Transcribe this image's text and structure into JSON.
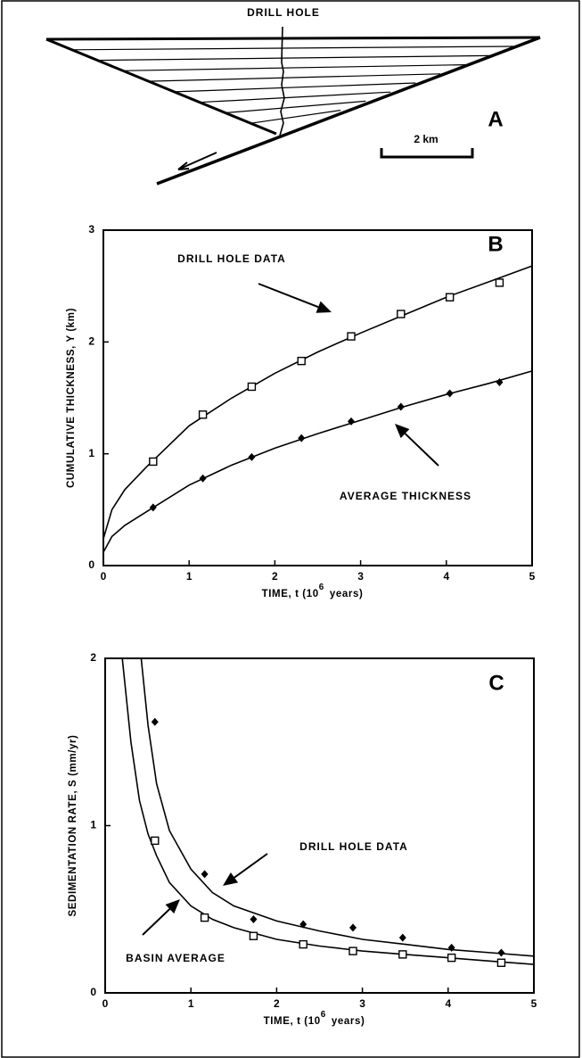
{
  "diagram": {
    "title": "DRILL HOLE",
    "scale": "2 km",
    "panel": "A"
  },
  "chart_data": [
    {
      "type": "line",
      "panel": "B",
      "ylabel": "CUMULATIVE THICKNESS, Y (km)",
      "xlabel": "TIME, t (10",
      "xlabel_exponent": "6",
      "xlabel_unit": "years)",
      "xlim": [
        0,
        5
      ],
      "ylim": [
        0,
        3
      ],
      "xticks": [
        0,
        1,
        2,
        3,
        4,
        5
      ],
      "yticks": [
        0,
        1,
        2,
        3
      ],
      "color": "#000000",
      "annotations": [
        "DRILL HOLE DATA",
        "AVERAGE THICKNESS"
      ],
      "series": [
        {
          "marker": "square",
          "x": [
            0.58,
            1.16,
            1.73,
            2.31,
            2.89,
            3.47,
            4.04,
            4.62
          ],
          "values": [
            0.93,
            1.35,
            1.6,
            1.83,
            2.05,
            2.25,
            2.4,
            2.53
          ]
        },
        {
          "marker": "diamond",
          "x": [
            0.58,
            1.16,
            1.73,
            2.31,
            2.89,
            3.47,
            4.04,
            4.62
          ],
          "values": [
            0.52,
            0.78,
            0.97,
            1.14,
            1.29,
            1.42,
            1.54,
            1.64
          ]
        }
      ],
      "curves": [
        {
          "x": [
            0,
            0.1,
            0.25,
            0.5,
            1,
            1.5,
            2,
            2.5,
            3,
            3.5,
            4,
            4.5,
            5
          ],
          "values": [
            0.24,
            0.5,
            0.68,
            0.88,
            1.25,
            1.5,
            1.72,
            1.91,
            2.08,
            2.24,
            2.4,
            2.54,
            2.68
          ]
        },
        {
          "x": [
            0,
            0.1,
            0.25,
            0.5,
            1,
            1.5,
            2,
            2.5,
            3,
            3.5,
            4,
            4.5,
            5
          ],
          "values": [
            0.12,
            0.26,
            0.36,
            0.48,
            0.72,
            0.9,
            1.05,
            1.18,
            1.3,
            1.42,
            1.53,
            1.63,
            1.74
          ]
        }
      ]
    },
    {
      "type": "line",
      "panel": "C",
      "ylabel": "SEDIMENTATION RATE, S (mm/yr)",
      "xlabel": "TIME, t (10",
      "xlabel_exponent": "6",
      "xlabel_unit": "years)",
      "xlim": [
        0,
        5
      ],
      "ylim": [
        0,
        2
      ],
      "xticks": [
        0,
        1,
        2,
        3,
        4,
        5
      ],
      "yticks": [
        0,
        1,
        2
      ],
      "color": "#000000",
      "annotations": [
        "DRILL HOLE DATA",
        "BASIN AVERAGE"
      ],
      "series": [
        {
          "marker": "diamond",
          "x": [
            0.58,
            1.16,
            1.73,
            2.31,
            2.89,
            3.47,
            4.04,
            4.62
          ],
          "values": [
            1.62,
            0.71,
            0.44,
            0.41,
            0.39,
            0.33,
            0.27,
            0.24
          ]
        },
        {
          "marker": "square",
          "x": [
            0.58,
            1.16,
            1.73,
            2.31,
            2.89,
            3.47,
            4.04,
            4.62
          ],
          "values": [
            0.91,
            0.45,
            0.34,
            0.29,
            0.25,
            0.23,
            0.21,
            0.18
          ]
        }
      ],
      "curves": [
        {
          "x": [
            0.42,
            0.5,
            0.6,
            0.75,
            1,
            1.25,
            1.5,
            2,
            2.5,
            3,
            3.5,
            4,
            4.5,
            5
          ],
          "values": [
            2,
            1.6,
            1.25,
            0.97,
            0.74,
            0.6,
            0.52,
            0.43,
            0.37,
            0.32,
            0.29,
            0.26,
            0.24,
            0.22
          ]
        },
        {
          "x": [
            0.2,
            0.3,
            0.4,
            0.5,
            0.6,
            0.75,
            1,
            1.25,
            1.5,
            2,
            2.5,
            3,
            3.5,
            4,
            4.5,
            5
          ],
          "values": [
            2,
            1.5,
            1.15,
            0.95,
            0.82,
            0.66,
            0.52,
            0.44,
            0.39,
            0.32,
            0.28,
            0.25,
            0.23,
            0.21,
            0.19,
            0.17
          ]
        }
      ]
    }
  ]
}
